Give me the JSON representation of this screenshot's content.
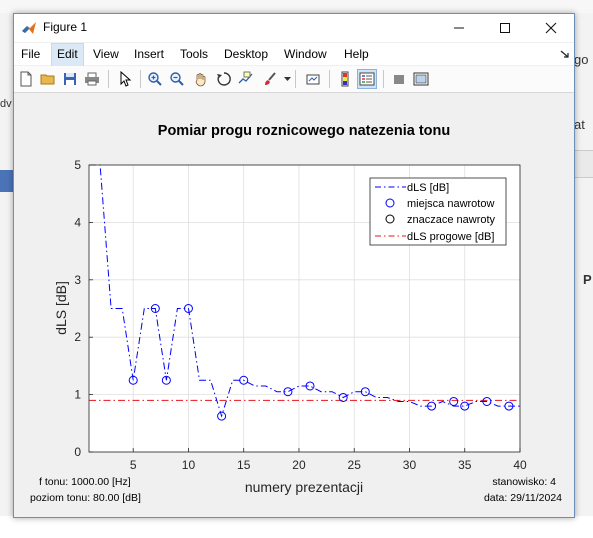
{
  "window": {
    "title": "Figure 1"
  },
  "menu": [
    "File",
    "Edit",
    "View",
    "Insert",
    "Tools",
    "Desktop",
    "Window",
    "Help"
  ],
  "menu_active": "Edit",
  "toolbar": [
    "new-figure",
    "open-file",
    "save",
    "print",
    "pointer",
    "zoom-in",
    "zoom-out",
    "pan",
    "rotate-3d",
    "data-cursor",
    "brush",
    "link-plot",
    "colorbar",
    "legend",
    "hide-plot-tools",
    "show-plot-tools"
  ],
  "background": {
    "left_fragment": "dv",
    "right_fragment_1": "go",
    "right_fragment_2": "at",
    "right_fragment_3": "P"
  },
  "chart_data": {
    "type": "line",
    "title": "Pomiar progu roznicowego natezenia tonu",
    "xlabel": "numery prezentacji",
    "ylabel": "dLS [dB]",
    "xlim": [
      1,
      40
    ],
    "ylim": [
      0,
      5
    ],
    "xticks": [
      5,
      10,
      15,
      20,
      25,
      30,
      35,
      40
    ],
    "yticks": [
      0,
      1,
      2,
      3,
      4,
      5
    ],
    "grid": true,
    "legend_position": "top-right",
    "series": [
      {
        "name": "dLS [dB]",
        "color": "#0000ff",
        "style": "dash-dot",
        "x": [
          1,
          2,
          3,
          4,
          5,
          6,
          7,
          8,
          9,
          10,
          11,
          12,
          13,
          14,
          15,
          16,
          17,
          18,
          19,
          20,
          21,
          22,
          23,
          24,
          25,
          26,
          27,
          28,
          29,
          30,
          31,
          32,
          33,
          34,
          35,
          36,
          37,
          38,
          39,
          40
        ],
        "y": [
          5,
          5,
          2.5,
          2.5,
          1.25,
          2.5,
          2.5,
          1.25,
          2.5,
          2.5,
          1.25,
          1.25,
          0.625,
          1.25,
          1.25,
          1.15,
          1.15,
          1.05,
          1.05,
          1.15,
          1.15,
          1.05,
          1.05,
          0.95,
          1.05,
          1.05,
          0.95,
          0.95,
          0.88,
          0.88,
          0.8,
          0.8,
          0.88,
          0.8,
          0.8,
          0.88,
          0.88,
          0.8,
          0.8,
          0.8
        ]
      },
      {
        "name": "miejsca nawrotow",
        "color": "#0000ff",
        "marker": "circle",
        "x": [
          5,
          7,
          8,
          10,
          13,
          15,
          19,
          21,
          24,
          26,
          32,
          34,
          35,
          37,
          39
        ],
        "y": [
          1.25,
          2.5,
          1.25,
          2.5,
          0.625,
          1.25,
          1.05,
          1.15,
          0.95,
          1.05,
          0.8,
          0.88,
          0.8,
          0.88,
          0.8
        ]
      },
      {
        "name": "znaczace nawroty",
        "color": "#000000",
        "marker": "circle",
        "x": [],
        "y": []
      },
      {
        "name": "dLS progowe [dB]",
        "color": "#e8141c",
        "style": "dash-dot",
        "value": 0.9
      }
    ],
    "annotations": {
      "f_tonu": "f tonu: 1000.00 [Hz]",
      "poziom_tonu": "poziom tonu: 80.00 [dB]",
      "stanowisko": "stanowisko: 4",
      "data": "data: 29/11/2024"
    }
  }
}
